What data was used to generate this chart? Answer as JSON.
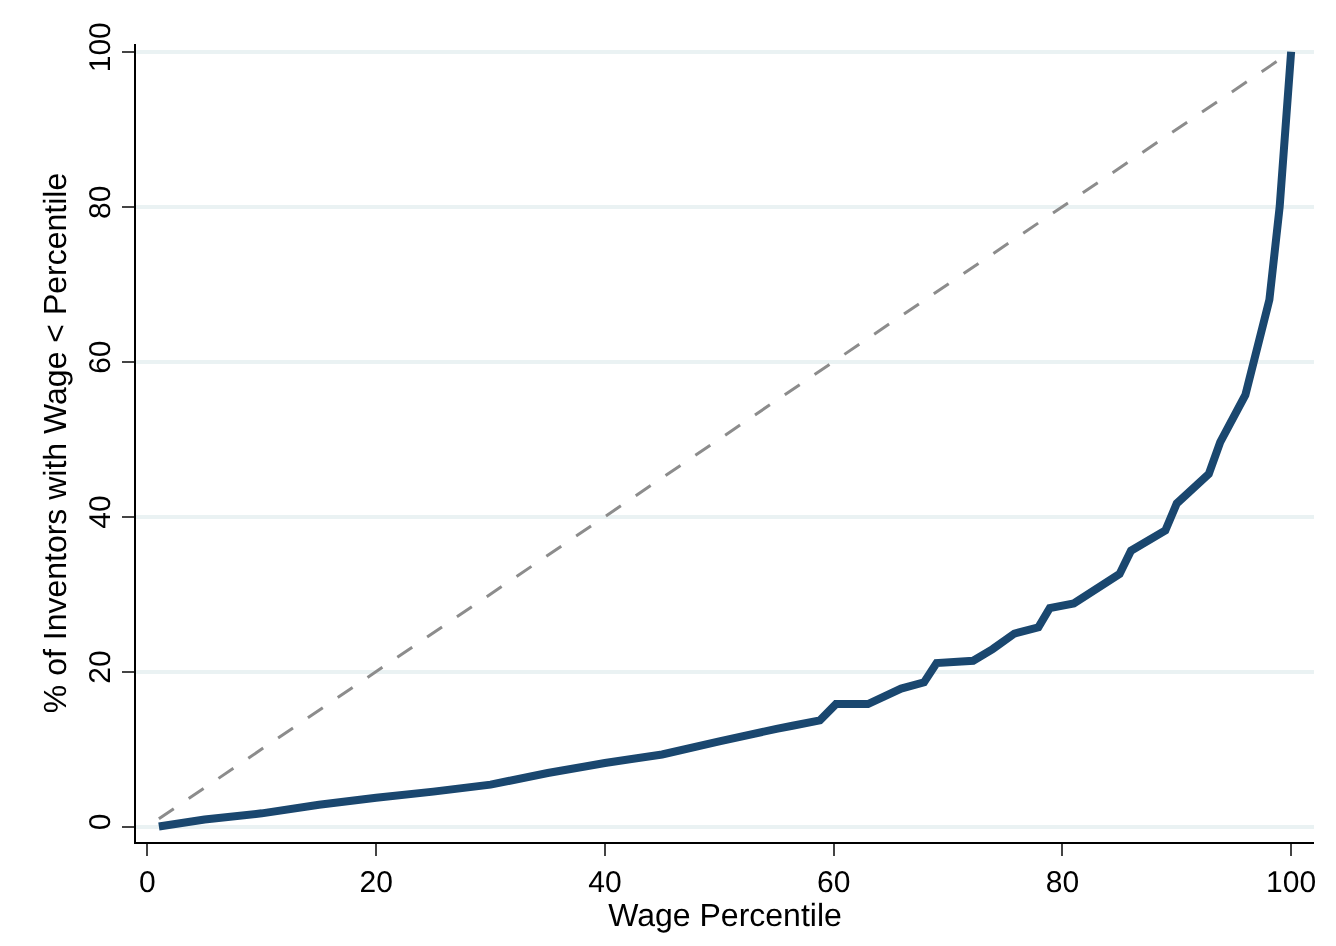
{
  "chart_data": {
    "type": "line",
    "xlabel": "Wage Percentile",
    "ylabel": "% of Inventors with Wage < Percentile",
    "xlim": [
      -1,
      102
    ],
    "ylim": [
      -2,
      101
    ],
    "xticks": [
      0,
      20,
      40,
      60,
      80,
      100
    ],
    "yticks": [
      0,
      20,
      40,
      60,
      80,
      100
    ],
    "grid": "y",
    "series": [
      {
        "color": "#1a476f",
        "x": [
          1,
          5,
          10,
          15,
          20,
          25,
          30,
          35,
          40,
          45,
          50,
          55,
          56.4,
          58.8,
          60.2,
          63,
          65.9,
          67.9,
          69,
          72.2,
          73.9,
          75.8,
          77.9,
          78.9,
          81,
          85,
          86,
          89,
          90,
          92.8,
          93.8,
          96,
          98.1,
          99,
          100
        ],
        "values": [
          0,
          0.9,
          1.7,
          2.8,
          3.7,
          4.5,
          5.4,
          6.9,
          8.2,
          9.3,
          11,
          12.6,
          13,
          13.7,
          15.8,
          15.8,
          17.8,
          18.6,
          21.1,
          21.4,
          22.9,
          24.9,
          25.7,
          28.2,
          28.8,
          32.6,
          35.6,
          38.2,
          41.7,
          45.5,
          49.6,
          55.7,
          68,
          80,
          100
        ]
      },
      {
        "color": "#8c8c8c",
        "line_style": "dashed",
        "x": [
          1,
          100
        ],
        "values": [
          1,
          100
        ]
      }
    ]
  }
}
